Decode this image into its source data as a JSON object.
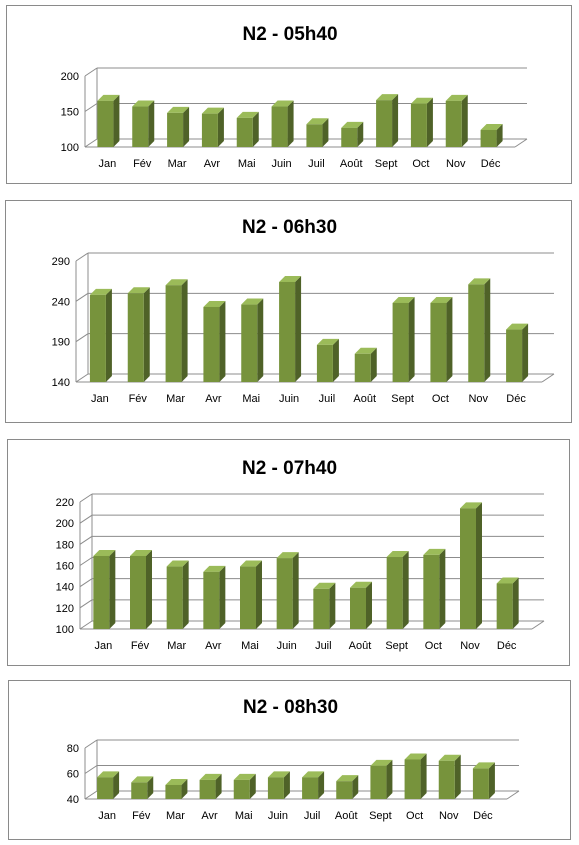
{
  "colors": {
    "bar_front": "#77933c",
    "bar_side": "#4f6228",
    "bar_top": "#9bbb59",
    "gridline": "#8c8c8c",
    "border": "#8a8a8a"
  },
  "chart_data": [
    {
      "type": "bar",
      "title": "N2 - 05h40",
      "xlabel": "",
      "ylabel": "",
      "categories": [
        "Jan",
        "Fév",
        "Mar",
        "Avr",
        "Mai",
        "Juin",
        "Juil",
        "Août",
        "Sept",
        "Oct",
        "Nov",
        "Déc"
      ],
      "values": [
        165,
        157,
        148,
        147,
        141,
        157,
        132,
        127,
        166,
        161,
        165,
        124
      ],
      "ylim": [
        100,
        200
      ],
      "yticks": [
        100,
        150,
        200
      ],
      "grid": true,
      "legend": "none"
    },
    {
      "type": "bar",
      "title": "N2 - 06h30",
      "xlabel": "",
      "ylabel": "",
      "categories": [
        "Jan",
        "Fév",
        "Mar",
        "Avr",
        "Mai",
        "Juin",
        "Juil",
        "Août",
        "Sept",
        "Oct",
        "Nov",
        "Déc"
      ],
      "values": [
        248,
        250,
        260,
        233,
        236,
        264,
        186,
        175,
        238,
        238,
        261,
        205
      ],
      "ylim": [
        140,
        290
      ],
      "yticks": [
        140,
        190,
        240,
        290
      ],
      "grid": true,
      "legend": "none"
    },
    {
      "type": "bar",
      "title": "N2 - 07h40",
      "xlabel": "",
      "ylabel": "",
      "categories": [
        "Jan",
        "Fév",
        "Mar",
        "Avr",
        "Mai",
        "Juin",
        "Juil",
        "Août",
        "Sept",
        "Oct",
        "Nov",
        "Déc"
      ],
      "values": [
        169,
        169,
        159,
        154,
        159,
        167,
        138,
        139,
        168,
        170,
        214,
        143
      ],
      "ylim": [
        100,
        220
      ],
      "yticks": [
        100,
        120,
        140,
        160,
        180,
        200,
        220
      ],
      "grid": true,
      "legend": "none"
    },
    {
      "type": "bar",
      "title": "N2 - 08h30",
      "xlabel": "",
      "ylabel": "",
      "categories": [
        "Jan",
        "Fév",
        "Mar",
        "Avr",
        "Mai",
        "Juin",
        "Juil",
        "Août",
        "Sept",
        "Oct",
        "Nov",
        "Déc"
      ],
      "values": [
        57,
        53,
        51,
        55,
        55,
        57,
        57,
        54,
        66,
        71,
        70,
        64
      ],
      "ylim": [
        40,
        80
      ],
      "yticks": [
        40,
        60,
        80
      ],
      "grid": true,
      "legend": "none"
    }
  ]
}
